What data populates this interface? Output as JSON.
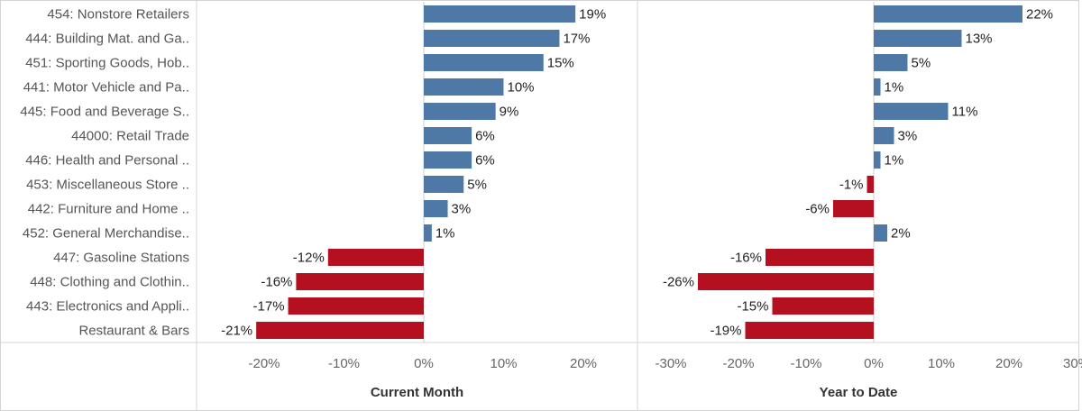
{
  "chart_data": {
    "type": "bar",
    "orientation": "horizontal",
    "categories": [
      "454: Nonstore Retailers",
      "444: Building Mat. and Ga..",
      "451: Sporting Goods, Hob..",
      "441: Motor Vehicle and Pa..",
      "445: Food and Beverage S..",
      "44000: Retail Trade",
      "446: Health and Personal ..",
      "453: Miscellaneous Store ..",
      "442: Furniture and Home ..",
      "452: General Merchandise..",
      "447: Gasoline Stations",
      "448: Clothing and Clothin..",
      "443: Electronics and Appli..",
      "Restaurant & Bars"
    ],
    "panels": [
      {
        "title": "Current Month",
        "values": [
          19,
          17,
          15,
          10,
          9,
          6,
          6,
          5,
          3,
          1,
          -12,
          -16,
          -17,
          -21
        ],
        "labels": [
          "19%",
          "17%",
          "15%",
          "10%",
          "9%",
          "6%",
          "6%",
          "5%",
          "3%",
          "1%",
          "-12%",
          "-16%",
          "-17%",
          "-21%"
        ],
        "xlim": [
          -22,
          24
        ],
        "ticks": [
          -20,
          -10,
          0,
          10,
          20
        ],
        "tick_labels": [
          "-20%",
          "-10%",
          "0%",
          "10%",
          "20%"
        ]
      },
      {
        "title": "Year to Date",
        "values": [
          22,
          13,
          5,
          1,
          11,
          3,
          1,
          -1,
          -6,
          2,
          -16,
          -26,
          -15,
          -19
        ],
        "labels": [
          "22%",
          "13%",
          "5%",
          "1%",
          "11%",
          "3%",
          "1%",
          "-1%",
          "-6%",
          "2%",
          "-16%",
          "-26%",
          "-15%",
          "-19%"
        ],
        "xlim": [
          -30,
          30
        ],
        "ticks": [
          -30,
          -20,
          -10,
          0,
          10,
          20,
          30
        ],
        "tick_labels": [
          "-30%",
          "-20%",
          "-10%",
          "0%",
          "10%",
          "20%",
          "30%"
        ]
      }
    ],
    "colors": {
      "positive": "#4e79a7",
      "negative": "#b5101f"
    },
    "grid": false,
    "legend": "none"
  }
}
